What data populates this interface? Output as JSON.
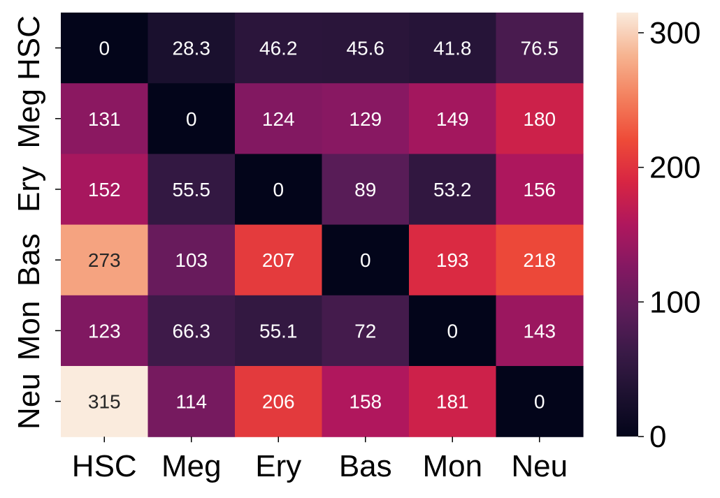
{
  "chart_data": {
    "type": "heatmap",
    "title": "",
    "xlabel": "",
    "ylabel": "",
    "x_categories": [
      "HSC",
      "Meg",
      "Ery",
      "Bas",
      "Mon",
      "Neu"
    ],
    "y_categories": [
      "HSC",
      "Meg",
      "Ery",
      "Bas",
      "Mon",
      "Neu"
    ],
    "values": [
      [
        "0",
        "28.3",
        "46.2",
        "45.6",
        "41.8",
        "76.5"
      ],
      [
        "131",
        "0",
        "124",
        "129",
        "149",
        "180"
      ],
      [
        "152",
        "55.5",
        "0",
        "89",
        "53.2",
        "156"
      ],
      [
        "273",
        "103",
        "207",
        "0",
        "193",
        "218"
      ],
      [
        "123",
        "66.3",
        "55.1",
        "72",
        "0",
        "143"
      ],
      [
        "315",
        "114",
        "206",
        "158",
        "181",
        "0"
      ]
    ],
    "colormap": "rocket",
    "vmin": 0,
    "vmax": 315,
    "colorbar_ticks": [
      "0",
      "100",
      "200",
      "300"
    ],
    "colorbar_tick_values": [
      0,
      100,
      200,
      300
    ],
    "annotation_colors": {
      "dark_text": "#262626",
      "light_text": "#ffffff"
    }
  }
}
